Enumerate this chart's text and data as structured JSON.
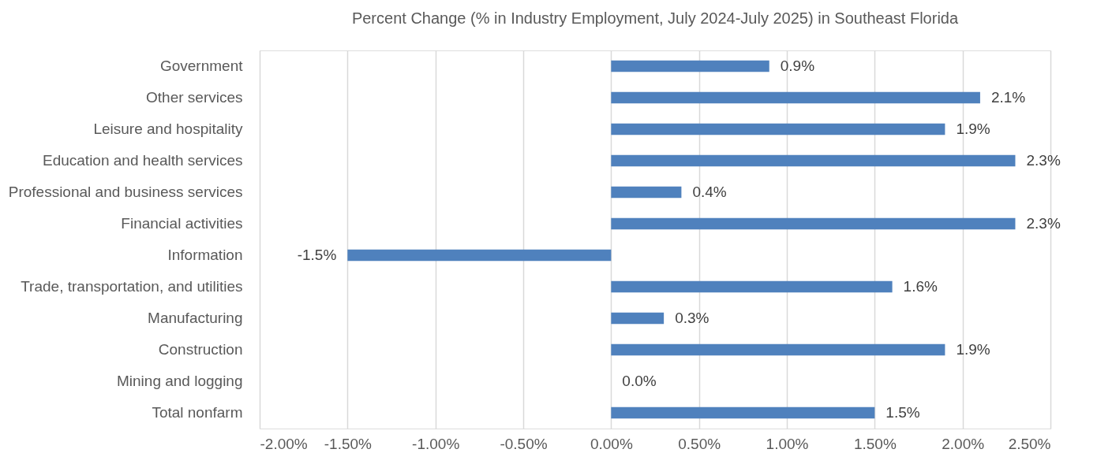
{
  "chart_data": {
    "type": "bar",
    "orientation": "horizontal",
    "title": "Percent Change (% in Industry Employment, July 2024-July 2025) in Southeast Florida",
    "categories": [
      "Government",
      "Other services",
      "Leisure and hospitality",
      "Education and health services",
      "Professional and business services",
      "Financial activities",
      "Information",
      "Trade, transportation, and utilities",
      "Manufacturing",
      "Construction",
      "Mining and logging",
      "Total nonfarm"
    ],
    "values": [
      0.9,
      2.1,
      1.9,
      2.3,
      0.4,
      2.3,
      -1.5,
      1.6,
      0.3,
      1.9,
      0.0,
      1.5
    ],
    "value_labels": [
      "0.9%",
      "2.1%",
      "1.9%",
      "2.3%",
      "0.4%",
      "2.3%",
      "-1.5%",
      "1.6%",
      "0.3%",
      "1.9%",
      "0.0%",
      "1.5%"
    ],
    "color": "#4f81bd",
    "xlim": [
      -2.0,
      2.5
    ],
    "xticks": [
      {
        "value": -2.0,
        "label": "-2.00%"
      },
      {
        "value": -1.5,
        "label": "-1.50%"
      },
      {
        "value": -1.0,
        "label": "-1.00%"
      },
      {
        "value": -0.5,
        "label": "-0.50%"
      },
      {
        "value": 0.0,
        "label": "0.00%"
      },
      {
        "value": 0.5,
        "label": "0.50%"
      },
      {
        "value": 1.0,
        "label": "1.00%"
      },
      {
        "value": 1.5,
        "label": "1.50%"
      },
      {
        "value": 2.0,
        "label": "2.00%"
      },
      {
        "value": 2.5,
        "label": "2.50%"
      }
    ],
    "grid": "x"
  }
}
